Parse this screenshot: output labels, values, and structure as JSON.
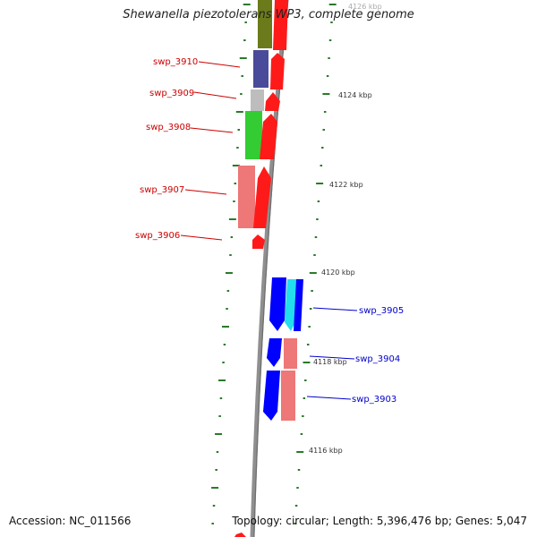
{
  "title": "Shewanella piezotolerans WP3, complete genome",
  "footer": {
    "accession": "Accession: NC_011566",
    "summary": "Topology: circular; Length: 5,396,476 bp; Genes: 5,047"
  },
  "scale_labels": [
    "4126 kbp",
    "4124 kbp",
    "4122 kbp",
    "4120 kbp",
    "4118 kbp",
    "4116 kbp"
  ],
  "gene_labels": {
    "left": [
      "swp_3910",
      "swp_3909",
      "swp_3908",
      "swp_3907",
      "swp_3906"
    ],
    "right": [
      "swp_3905",
      "swp_3904",
      "swp_3903"
    ]
  },
  "colors": {
    "label_left": "#cc0000",
    "label_right": "#0000cc",
    "backbone": "#8a8a8a",
    "scale_tick": "#2a7a2a",
    "forward_gene": "#ff0000",
    "reverse_gene": "#0000ff",
    "olive": "#6b7a1a",
    "slate_blue": "#4a4a9a",
    "gray": "#bdbdbd",
    "green": "#33cc33",
    "pink": "#ee7777",
    "cyan": "#22ddee"
  }
}
